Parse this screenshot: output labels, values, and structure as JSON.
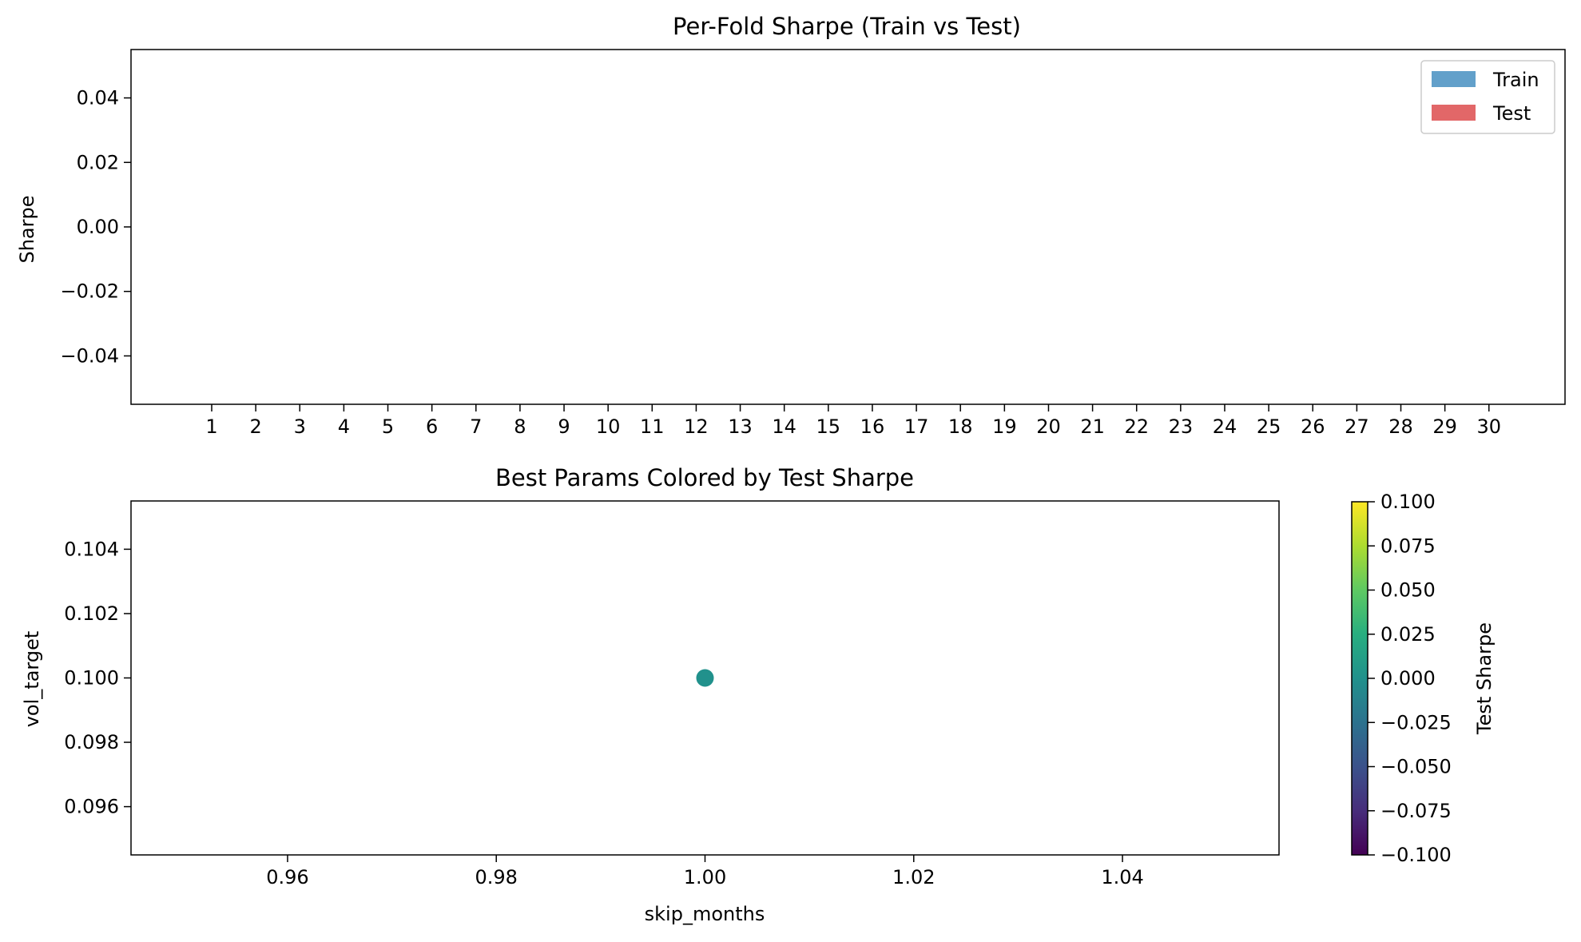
{
  "chart_data": [
    {
      "type": "bar",
      "title": "Per-Fold Sharpe (Train vs Test)",
      "xlabel": "",
      "ylabel": "Sharpe",
      "categories": [
        "1",
        "2",
        "3",
        "4",
        "5",
        "6",
        "7",
        "8",
        "9",
        "10",
        "11",
        "12",
        "13",
        "14",
        "15",
        "16",
        "17",
        "18",
        "19",
        "20",
        "21",
        "22",
        "23",
        "24",
        "25",
        "26",
        "27",
        "28",
        "29",
        "30"
      ],
      "series": [
        {
          "name": "Train",
          "color": "#1f77b4",
          "values": [
            0,
            0,
            0,
            0,
            0,
            0,
            0,
            0,
            0,
            0,
            0,
            0,
            0,
            0,
            0,
            0,
            0,
            0,
            0,
            0,
            0,
            0,
            0,
            0,
            0,
            0,
            0,
            0,
            0,
            0
          ]
        },
        {
          "name": "Test",
          "color": "#d62728",
          "values": [
            0,
            0,
            0,
            0,
            0,
            0,
            0,
            0,
            0,
            0,
            0,
            0,
            0,
            0,
            0,
            0,
            0,
            0,
            0,
            0,
            0,
            0,
            0,
            0,
            0,
            0,
            0,
            0,
            0,
            0
          ]
        }
      ],
      "yticks": [
        "0.04",
        "0.02",
        "0.00",
        "−0.02",
        "−0.04"
      ],
      "ytick_values": [
        0.04,
        0.02,
        0.0,
        -0.02,
        -0.04
      ],
      "ylim": [
        -0.055,
        0.055
      ],
      "legend": "top-right",
      "grid": false
    },
    {
      "type": "scatter",
      "title": "Best Params Colored by Test Sharpe",
      "xlabel": "skip_months",
      "ylabel": "vol_target",
      "points": [
        {
          "x": 1.0,
          "y": 0.1,
          "c": 0.0
        }
      ],
      "xticks": [
        "0.96",
        "0.98",
        "1.00",
        "1.02",
        "1.04"
      ],
      "xtick_values": [
        0.96,
        0.98,
        1.0,
        1.02,
        1.04
      ],
      "yticks": [
        "0.104",
        "0.102",
        "0.100",
        "0.098",
        "0.096"
      ],
      "ytick_values": [
        0.104,
        0.102,
        0.1,
        0.098,
        0.096
      ],
      "xlim": [
        0.945,
        1.055
      ],
      "ylim": [
        0.0945,
        0.1055
      ],
      "point_color": "#21918c",
      "colorbar": {
        "label": "Test Sharpe",
        "colormap": "viridis",
        "ticks": [
          "0.100",
          "0.075",
          "0.050",
          "0.025",
          "0.000",
          "−0.025",
          "−0.050",
          "−0.075",
          "−0.100"
        ],
        "tick_values": [
          0.1,
          0.075,
          0.05,
          0.025,
          0.0,
          -0.025,
          -0.05,
          -0.075,
          -0.1
        ],
        "range": [
          -0.1,
          0.1
        ]
      },
      "grid": false
    }
  ]
}
